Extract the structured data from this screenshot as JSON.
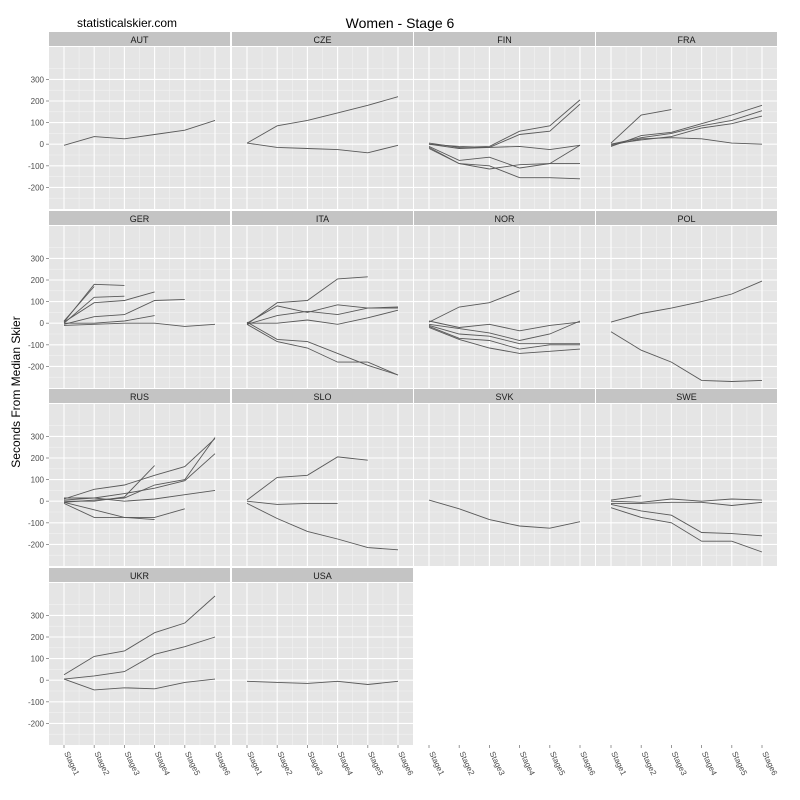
{
  "header": {
    "site": "statisticalskier.com",
    "title": "Women - Stage 6"
  },
  "chart_data": {
    "type": "line",
    "title": "Women - Stage 6",
    "ylabel": "Seconds From Median Skier",
    "xlabel": "",
    "categories": [
      "Stage1",
      "Stage2",
      "Stage3",
      "Stage4",
      "Stage5",
      "Stage6"
    ],
    "yticks": [
      -200,
      -100,
      0,
      100,
      200,
      300
    ],
    "ylim": [
      -300,
      450
    ],
    "grid": true,
    "line_color": "#595959",
    "panel_bg": "#e5e5e5",
    "strip_bg": "#c4c4c4",
    "panels": [
      {
        "name": "AUT",
        "series": [
          [
            -5,
            35,
            25,
            45,
            65,
            110
          ]
        ]
      },
      {
        "name": "CZE",
        "series": [
          [
            5,
            85,
            110,
            145,
            180,
            220
          ],
          [
            5,
            -15,
            -20,
            -25,
            -40,
            -5
          ]
        ]
      },
      {
        "name": "FIN",
        "series": [
          [
            0,
            -20,
            -15,
            45,
            60,
            185
          ],
          [
            5,
            -15,
            -10,
            60,
            85,
            205
          ],
          [
            -10,
            -75,
            -60,
            -110,
            -90,
            -5
          ],
          [
            -15,
            -90,
            -115,
            -95,
            -90,
            -90
          ],
          [
            -20,
            -90,
            -100,
            -155,
            -155,
            -160
          ],
          [
            0,
            -10,
            -15,
            -10,
            -25,
            -5
          ]
        ]
      },
      {
        "name": "FRA",
        "series": [
          [
            -10,
            40,
            55,
            95,
            135,
            180
          ],
          [
            0,
            30,
            50,
            85,
            110,
            155
          ],
          [
            0,
            20,
            35,
            75,
            95,
            130
          ],
          [
            5,
            135,
            160,
            null,
            null,
            null
          ],
          [
            -5,
            25,
            30,
            25,
            5,
            0
          ]
        ]
      },
      {
        "name": "GER",
        "series": [
          [
            5,
            180,
            175,
            null,
            null,
            null
          ],
          [
            10,
            170,
            null,
            null,
            null,
            null
          ],
          [
            0,
            120,
            125,
            null,
            null,
            null
          ],
          [
            5,
            95,
            105,
            145,
            null,
            null
          ],
          [
            -5,
            30,
            40,
            105,
            110,
            null
          ],
          [
            0,
            0,
            10,
            35,
            null,
            null
          ],
          [
            -10,
            -5,
            0,
            0,
            -15,
            -5
          ]
        ]
      },
      {
        "name": "ITA",
        "series": [
          [
            -5,
            95,
            105,
            205,
            215,
            null
          ],
          [
            0,
            80,
            50,
            85,
            70,
            75
          ],
          [
            -5,
            35,
            55,
            40,
            70,
            70
          ],
          [
            0,
            0,
            15,
            -5,
            25,
            60
          ],
          [
            5,
            -75,
            -85,
            -140,
            -195,
            -240
          ],
          [
            -5,
            -85,
            -115,
            -180,
            -180,
            -240
          ]
        ]
      },
      {
        "name": "NOR",
        "series": [
          [
            5,
            75,
            95,
            150,
            null,
            null
          ],
          [
            10,
            -20,
            -5,
            -35,
            -10,
            5
          ],
          [
            -5,
            -25,
            -45,
            -80,
            -50,
            10
          ],
          [
            -10,
            -50,
            -60,
            -95,
            -95,
            -95
          ],
          [
            -15,
            -70,
            -80,
            -120,
            -100,
            -100
          ],
          [
            -20,
            -75,
            -115,
            -140,
            -130,
            -120
          ]
        ]
      },
      {
        "name": "POL",
        "series": [
          [
            5,
            45,
            70,
            100,
            135,
            195
          ],
          [
            -40,
            -125,
            -180,
            -265,
            -270,
            -265
          ]
        ]
      },
      {
        "name": "RUS",
        "series": [
          [
            10,
            55,
            75,
            120,
            160,
            290
          ],
          [
            5,
            15,
            35,
            60,
            95,
            220
          ],
          [
            0,
            0,
            20,
            165,
            null,
            null
          ],
          [
            -5,
            5,
            15,
            75,
            100,
            295
          ],
          [
            15,
            15,
            0,
            10,
            30,
            50
          ],
          [
            -5,
            -40,
            -75,
            -75,
            -35,
            null
          ],
          [
            -10,
            -75,
            -75,
            -85,
            null,
            null
          ]
        ]
      },
      {
        "name": "SLO",
        "series": [
          [
            5,
            110,
            120,
            205,
            190,
            null
          ],
          [
            0,
            -15,
            -10,
            -10,
            null,
            null
          ],
          [
            -10,
            -80,
            -140,
            -175,
            -215,
            -225
          ]
        ]
      },
      {
        "name": "SVK",
        "series": [
          [
            5,
            -35,
            -85,
            -115,
            -125,
            -95
          ]
        ]
      },
      {
        "name": "SWE",
        "series": [
          [
            5,
            25,
            null,
            null,
            null,
            null
          ],
          [
            0,
            -5,
            10,
            0,
            10,
            5
          ],
          [
            -10,
            -10,
            -5,
            -5,
            -20,
            -5
          ],
          [
            -15,
            -45,
            -65,
            -145,
            -150,
            -160
          ],
          [
            -30,
            -75,
            -100,
            -185,
            -185,
            -235
          ]
        ]
      },
      {
        "name": "UKR",
        "series": [
          [
            25,
            110,
            135,
            220,
            265,
            390
          ],
          [
            5,
            20,
            40,
            120,
            155,
            200
          ],
          [
            5,
            -45,
            -35,
            -40,
            -10,
            5
          ]
        ]
      },
      {
        "name": "USA",
        "series": [
          [
            -5,
            -10,
            -15,
            -5,
            -20,
            -5
          ]
        ]
      }
    ]
  }
}
